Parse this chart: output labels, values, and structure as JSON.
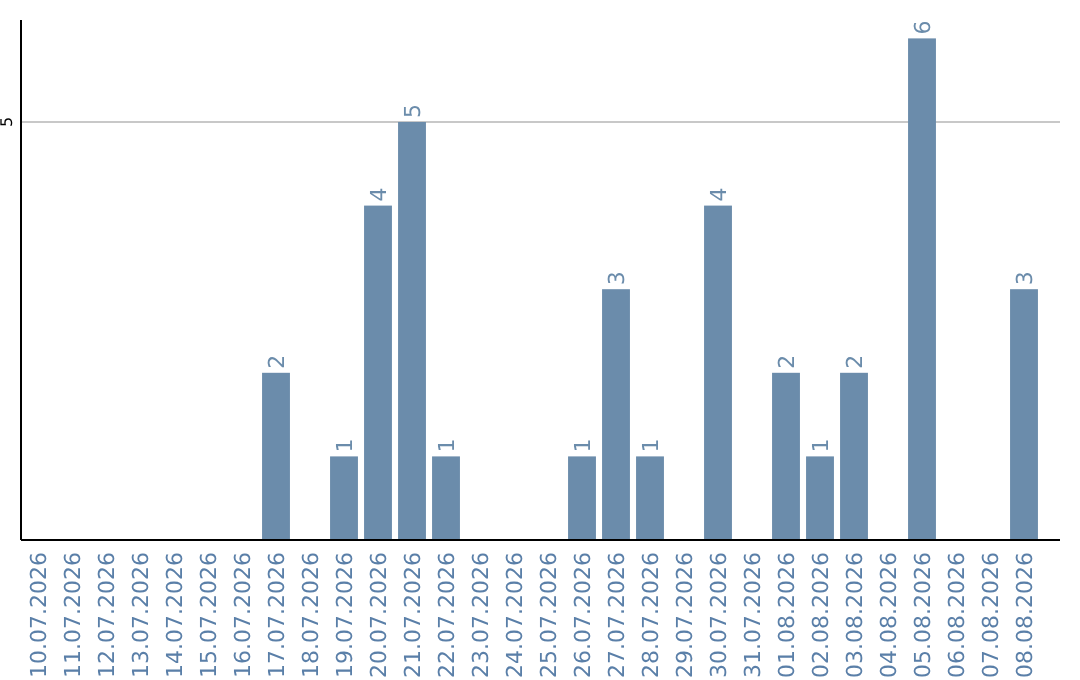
{
  "chart_data": {
    "type": "bar",
    "categories": [
      "10.07.2026",
      "11.07.2026",
      "12.07.2026",
      "13.07.2026",
      "14.07.2026",
      "15.07.2026",
      "16.07.2026",
      "17.07.2026",
      "18.07.2026",
      "19.07.2026",
      "20.07.2026",
      "21.07.2026",
      "22.07.2026",
      "23.07.2026",
      "24.07.2026",
      "25.07.2026",
      "26.07.2026",
      "27.07.2026",
      "28.07.2026",
      "29.07.2026",
      "30.07.2026",
      "31.07.2026",
      "01.08.2026",
      "02.08.2026",
      "03.08.2026",
      "04.08.2026",
      "05.08.2026",
      "06.08.2026",
      "07.08.2026",
      "08.08.2026"
    ],
    "values": [
      null,
      null,
      null,
      null,
      null,
      null,
      null,
      2,
      null,
      1,
      4,
      5,
      1,
      null,
      null,
      null,
      1,
      3,
      1,
      null,
      4,
      null,
      2,
      1,
      2,
      null,
      6,
      null,
      null,
      3
    ],
    "color": "#6b8cab",
    "ylim": [
      0,
      6.22
    ],
    "yticks": [
      5
    ],
    "grid": "y",
    "data_labels": true
  }
}
